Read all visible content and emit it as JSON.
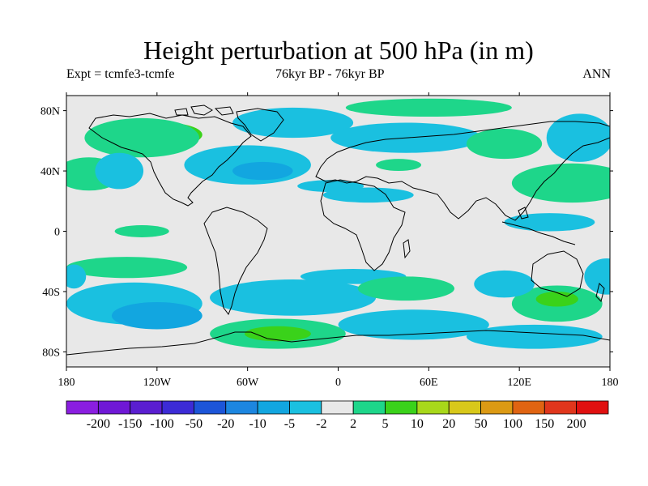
{
  "title": "Height perturbation at 500 hPa (in m)",
  "subtitle_left": "Expt = tcmfe3-tcmfe",
  "subtitle_center": "76kyr BP - 76kyr BP",
  "subtitle_right": "ANN",
  "axes": {
    "lon_ticks": [
      "180",
      "120W",
      "60W",
      "0",
      "60E",
      "120E",
      "180"
    ],
    "lat_ticks": [
      "80N",
      "40N",
      "0",
      "40S",
      "80S"
    ],
    "lon_range": [
      -180,
      180
    ],
    "lat_range": [
      -90,
      90
    ]
  },
  "colorbar": {
    "labels": [
      "-200",
      "-150",
      "-100",
      "-50",
      "-20",
      "-10",
      "-5",
      "-2",
      "2",
      "5",
      "10",
      "20",
      "50",
      "100",
      "150",
      "200"
    ],
    "colors": [
      "#8a1ee0",
      "#6f18d6",
      "#5a1ed0",
      "#3c2bd6",
      "#1c55d8",
      "#1c86e0",
      "#12a6e0",
      "#1ac0e0",
      "#e8e8e8",
      "#1ed68a",
      "#3ad21a",
      "#a8d81a",
      "#d8c81a",
      "#dc9a14",
      "#e06412",
      "#e0361c",
      "#e01010"
    ]
  },
  "chart_data": {
    "type": "heatmap",
    "projection": "cylindrical-equidistant",
    "variable": "Height perturbation at 500 hPa",
    "units": "m",
    "levels": [
      -200,
      -150,
      -100,
      -50,
      -20,
      -10,
      -5,
      -2,
      2,
      5,
      10,
      20,
      50,
      100,
      150,
      200
    ],
    "background_color_range": [
      -2,
      2
    ],
    "regions": [
      {
        "lon": -115,
        "lat": 64,
        "rx": 25,
        "ry": 8,
        "cls": 10
      },
      {
        "lon": -130,
        "lat": 62,
        "rx": 38,
        "ry": 13,
        "cls": 9
      },
      {
        "lon": -168,
        "lat": 40,
        "rx": 14,
        "ry": 6,
        "cls": 11
      },
      {
        "lon": -165,
        "lat": 38,
        "rx": 22,
        "ry": 11,
        "cls": 9
      },
      {
        "lon": -60,
        "lat": 44,
        "rx": 42,
        "ry": 13,
        "cls": 7
      },
      {
        "lon": -50,
        "lat": 40,
        "rx": 20,
        "ry": 6,
        "cls": 6
      },
      {
        "lon": -145,
        "lat": 40,
        "rx": 16,
        "ry": 12,
        "cls": 7
      },
      {
        "lon": -30,
        "lat": 72,
        "rx": 40,
        "ry": 10,
        "cls": 7
      },
      {
        "lon": 60,
        "lat": 82,
        "rx": 55,
        "ry": 6,
        "cls": 9
      },
      {
        "lon": 45,
        "lat": 62,
        "rx": 50,
        "ry": 10,
        "cls": 7
      },
      {
        "lon": 110,
        "lat": 58,
        "rx": 25,
        "ry": 10,
        "cls": 9
      },
      {
        "lon": 160,
        "lat": 62,
        "rx": 22,
        "ry": 16,
        "cls": 7
      },
      {
        "lon": 160,
        "lat": 36,
        "rx": 30,
        "ry": 8,
        "cls": 10
      },
      {
        "lon": 155,
        "lat": 32,
        "rx": 40,
        "ry": 13,
        "cls": 9
      },
      {
        "lon": 140,
        "lat": 6,
        "rx": 30,
        "ry": 6,
        "cls": 7
      },
      {
        "lon": 40,
        "lat": 44,
        "rx": 15,
        "ry": 4,
        "cls": 9
      },
      {
        "lon": -5,
        "lat": 30,
        "rx": 22,
        "ry": 4,
        "cls": 7
      },
      {
        "lon": 20,
        "lat": 24,
        "rx": 30,
        "ry": 5,
        "cls": 7
      },
      {
        "lon": -130,
        "lat": 0,
        "rx": 18,
        "ry": 4,
        "cls": 9
      },
      {
        "lon": -140,
        "lat": -24,
        "rx": 40,
        "ry": 7,
        "cls": 9
      },
      {
        "lon": -135,
        "lat": -48,
        "rx": 45,
        "ry": 14,
        "cls": 7
      },
      {
        "lon": -120,
        "lat": -56,
        "rx": 30,
        "ry": 9,
        "cls": 6
      },
      {
        "lon": -40,
        "lat": -68,
        "rx": 45,
        "ry": 10,
        "cls": 9
      },
      {
        "lon": -40,
        "lat": -68,
        "rx": 22,
        "ry": 5,
        "cls": 10
      },
      {
        "lon": -30,
        "lat": -44,
        "rx": 55,
        "ry": 12,
        "cls": 7
      },
      {
        "lon": 10,
        "lat": -30,
        "rx": 35,
        "ry": 5,
        "cls": 7
      },
      {
        "lon": 45,
        "lat": -38,
        "rx": 32,
        "ry": 8,
        "cls": 9
      },
      {
        "lon": 50,
        "lat": -62,
        "rx": 50,
        "ry": 10,
        "cls": 7
      },
      {
        "lon": 145,
        "lat": -48,
        "rx": 30,
        "ry": 12,
        "cls": 9
      },
      {
        "lon": 145,
        "lat": -45,
        "rx": 14,
        "ry": 5,
        "cls": 10
      },
      {
        "lon": 110,
        "lat": -35,
        "rx": 20,
        "ry": 9,
        "cls": 7
      },
      {
        "lon": 130,
        "lat": -70,
        "rx": 45,
        "ry": 8,
        "cls": 7
      },
      {
        "lon": 178,
        "lat": -30,
        "rx": 15,
        "ry": 12,
        "cls": 7
      },
      {
        "lon": -175,
        "lat": -30,
        "rx": 8,
        "ry": 8,
        "cls": 7
      }
    ]
  }
}
